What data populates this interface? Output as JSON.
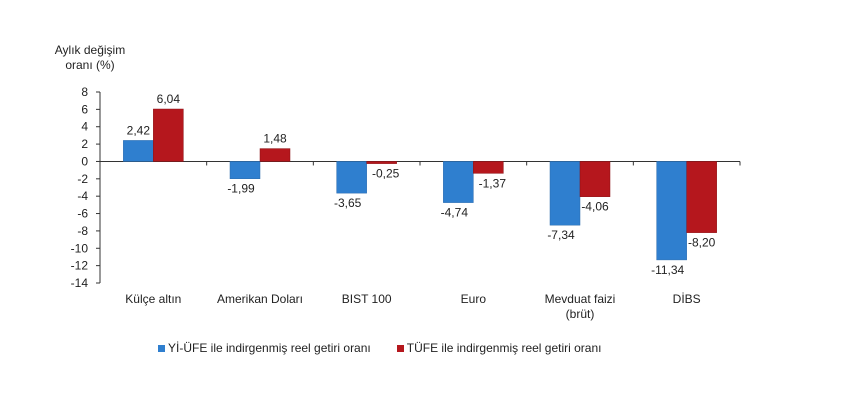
{
  "chart_data": {
    "type": "bar",
    "ylabel": "Aylık değişim oranı (%)",
    "ylabel_lines": [
      "Aylık değişim",
      "oranı (%)"
    ],
    "ylim": [
      -14,
      8
    ],
    "yticks": [
      8,
      6,
      4,
      2,
      0,
      -2,
      -4,
      -6,
      -8,
      -10,
      -12,
      -14
    ],
    "grid": false,
    "legend_position": "bottom",
    "categories": [
      "Külçe altın",
      "Amerikan Doları",
      "BIST 100",
      "Euro",
      "Mevduat faizi (brüt)",
      "DİBS"
    ],
    "category_lines": [
      [
        "Külçe altın"
      ],
      [
        "Amerikan Doları"
      ],
      [
        "BIST 100"
      ],
      [
        "Euro"
      ],
      [
        "Mevduat faizi",
        "(brüt)"
      ],
      [
        "DİBS"
      ]
    ],
    "series": [
      {
        "name": "Yİ-ÜFE ile indirgenmiş reel getiri oranı",
        "color": "#2f7fcf",
        "values": [
          2.42,
          -1.99,
          -3.65,
          -4.74,
          -7.34,
          -11.34
        ],
        "labels": [
          "2,42",
          "-1,99",
          "-3,65",
          "-4,74",
          "-7,34",
          "-11,34"
        ]
      },
      {
        "name": "TÜFE ile indirgenmiş reel getiri oranı",
        "color": "#b5171d",
        "values": [
          6.04,
          1.48,
          -0.25,
          -1.37,
          -4.06,
          -8.2
        ],
        "labels": [
          "6,04",
          "1,48",
          "-0,25",
          "-1,37",
          "-4,06",
          "-8,20"
        ]
      }
    ]
  }
}
